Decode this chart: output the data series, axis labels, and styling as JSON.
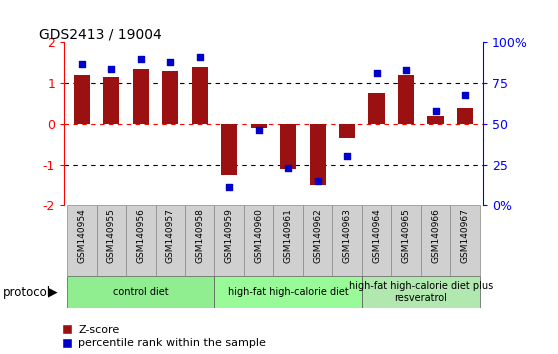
{
  "title": "GDS2413 / 19004",
  "samples": [
    "GSM140954",
    "GSM140955",
    "GSM140956",
    "GSM140957",
    "GSM140958",
    "GSM140959",
    "GSM140960",
    "GSM140961",
    "GSM140962",
    "GSM140963",
    "GSM140964",
    "GSM140965",
    "GSM140966",
    "GSM140967"
  ],
  "zscore": [
    1.2,
    1.15,
    1.35,
    1.3,
    1.4,
    -1.25,
    -0.1,
    -1.1,
    -1.5,
    -0.35,
    0.75,
    1.2,
    0.2,
    0.4
  ],
  "percentile": [
    87,
    84,
    90,
    88,
    91,
    11,
    46,
    23,
    15,
    30,
    81,
    83,
    58,
    68
  ],
  "groups": [
    {
      "label": "control diet",
      "start": 0,
      "end": 5,
      "color": "#90ee90"
    },
    {
      "label": "high-fat high-calorie diet",
      "start": 5,
      "end": 10,
      "color": "#98fb98"
    },
    {
      "label": "high-fat high-calorie diet plus\nresveratrol",
      "start": 10,
      "end": 14,
      "color": "#b0e8b0"
    }
  ],
  "bar_color": "#9b1010",
  "dot_color": "#0000cc",
  "sample_box_color": "#d0d0d0",
  "ylim": [
    -2,
    2
  ],
  "y2lim": [
    0,
    100
  ],
  "yticks": [
    -2,
    -1,
    0,
    1,
    2
  ],
  "y2ticks": [
    0,
    25,
    50,
    75,
    100
  ],
  "y2ticklabels": [
    "0%",
    "25",
    "50",
    "75",
    "100%"
  ],
  "legend_zscore": "Z-score",
  "legend_pct": "percentile rank within the sample",
  "background_color": "#ffffff",
  "protocol_label": "protocol"
}
